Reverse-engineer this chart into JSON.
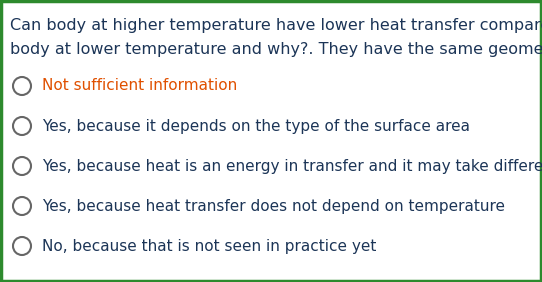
{
  "question_line1": "Can body at higher temperature have lower heat transfer compared to",
  "question_line2": "body at lower temperature and why?. They have the same geometry",
  "options": [
    [
      "Not sufficient information",
      "red"
    ],
    [
      "Yes, because it depends on the type of the surface area",
      "normal"
    ],
    [
      "Yes, because heat is an energy in transfer and it may take different values",
      "normal"
    ],
    [
      "Yes, because heat transfer does not depend on temperature",
      "normal"
    ],
    [
      "No, because that is not seen in practice yet",
      "normal"
    ]
  ],
  "question_color": "#1c3557",
  "option_normal_color": "#1c3557",
  "option_highlight_color": "#e05000",
  "background_color": "#ffffff",
  "border_color": "#2d8a2d",
  "circle_edge_color": "#666666",
  "figsize": [
    5.42,
    2.82
  ],
  "dpi": 100
}
